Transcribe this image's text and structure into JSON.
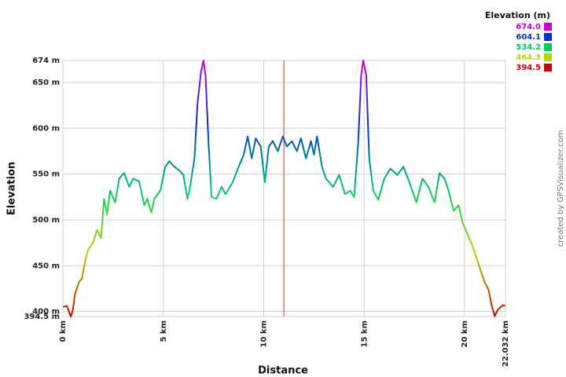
{
  "chart_data": {
    "type": "line",
    "xlabel": "Distance",
    "ylabel": "Elevation",
    "credit": "created by GPSVisualizer.com",
    "xlim": [
      0,
      22.032
    ],
    "ylim": [
      394.5,
      674
    ],
    "xticks": [
      {
        "value": 0,
        "label": "0 km"
      },
      {
        "value": 5,
        "label": "5 km"
      },
      {
        "value": 10,
        "label": "10 km"
      },
      {
        "value": 15,
        "label": "15 km"
      },
      {
        "value": 20,
        "label": "20 km"
      },
      {
        "value": 22.032,
        "label": "22.032 km"
      }
    ],
    "yticks": [
      {
        "value": 394.5,
        "label": "394.5 m"
      },
      {
        "value": 400,
        "label": "400 m"
      },
      {
        "value": 450,
        "label": "450 m"
      },
      {
        "value": 500,
        "label": "500 m"
      },
      {
        "value": 550,
        "label": "550 m"
      },
      {
        "value": 600,
        "label": "600 m"
      },
      {
        "value": 650,
        "label": "650 m"
      },
      {
        "value": 674,
        "label": "674 m"
      }
    ],
    "grid": true,
    "cursor_x": 11,
    "cursor_color": "#cc3333",
    "legend": {
      "title": "Elevation (m)",
      "position": "top-right",
      "items": [
        {
          "value": 674,
          "label": "674.0",
          "color": "#cc00cc"
        },
        {
          "value": 604.1,
          "label": "604.1",
          "color": "#0033cc"
        },
        {
          "value": 534.2,
          "label": "534.2",
          "color": "#00cc66"
        },
        {
          "value": 464.3,
          "label": "464.3",
          "color": "#aadd00"
        },
        {
          "value": 394.5,
          "label": "394.5",
          "color": "#cc0000"
        }
      ]
    },
    "x": [
      0,
      0.2,
      0.3,
      0.4,
      0.5,
      0.6,
      0.8,
      0.95,
      1.1,
      1.25,
      1.5,
      1.7,
      1.9,
      2.05,
      2.2,
      2.35,
      2.6,
      2.8,
      3.05,
      3.3,
      3.5,
      3.8,
      4.05,
      4.2,
      4.4,
      4.55,
      4.85,
      5.1,
      5.3,
      5.55,
      5.8,
      6.0,
      6.2,
      6.3,
      6.55,
      6.7,
      6.88,
      7.0,
      7.1,
      7.25,
      7.4,
      7.65,
      7.9,
      8.1,
      8.45,
      8.75,
      9.0,
      9.2,
      9.4,
      9.6,
      9.85,
      10.05,
      10.25,
      10.45,
      10.7,
      10.95,
      11.15,
      11.4,
      11.65,
      11.85,
      12.1,
      12.35,
      12.5,
      12.65,
      12.9,
      13.1,
      13.45,
      13.75,
      14.05,
      14.3,
      14.5,
      14.7,
      14.85,
      14.95,
      15.1,
      15.25,
      15.45,
      15.7,
      16.0,
      16.3,
      16.65,
      16.95,
      17.25,
      17.6,
      17.9,
      18.2,
      18.5,
      18.75,
      19.0,
      19.2,
      19.45,
      19.7,
      19.9,
      20.15,
      20.4,
      20.6,
      20.85,
      21.0,
      21.2,
      21.35,
      21.5,
      21.65,
      21.9,
      22.032
    ],
    "series": [
      {
        "name": "Elevation",
        "values": [
          405,
          406,
          400,
          394.5,
          402,
          419,
          432,
          436,
          454,
          467,
          475,
          489,
          480,
          523,
          506,
          532,
          519,
          545,
          551,
          536,
          545,
          542,
          516,
          523,
          508,
          523,
          532,
          558,
          564,
          558,
          554,
          549,
          523,
          532,
          567,
          627,
          662,
          674,
          658,
          584,
          525,
          523,
          536,
          528,
          541,
          558,
          571,
          591,
          567,
          589,
          580,
          541,
          580,
          586,
          575,
          591,
          580,
          586,
          575,
          589,
          567,
          586,
          571,
          591,
          558,
          545,
          536,
          549,
          528,
          532,
          525,
          584,
          658,
          674,
          658,
          567,
          532,
          522,
          545,
          556,
          549,
          558,
          541,
          519,
          545,
          536,
          519,
          551,
          545,
          532,
          510,
          516,
          497,
          484,
          471,
          458,
          441,
          432,
          423,
          406,
          395,
          402,
          407,
          406
        ]
      }
    ]
  }
}
